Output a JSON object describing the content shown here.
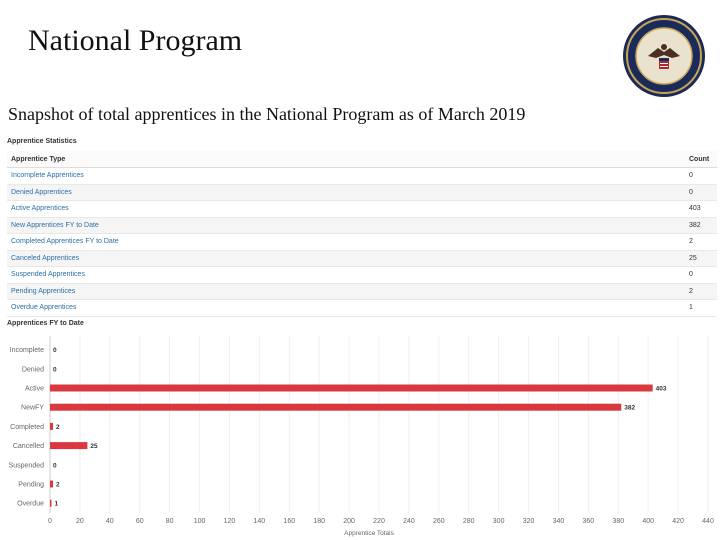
{
  "slide": {
    "title": "National Program",
    "subtitle": "Snapshot of total apprentices in the National Program as of March 2019"
  },
  "stats": {
    "title": "Apprentice Statistics",
    "columns": [
      "Apprentice Type",
      "Count"
    ],
    "rows": [
      {
        "type": "Incomplete Apprentices",
        "count": "0"
      },
      {
        "type": "Denied Apprentices",
        "count": "0"
      },
      {
        "type": "Active Apprentices",
        "count": "403"
      },
      {
        "type": "New Apprentices FY to Date",
        "count": "382"
      },
      {
        "type": "Completed Apprentices FY to Date",
        "count": "2"
      },
      {
        "type": "Canceled Apprentices",
        "count": "25"
      },
      {
        "type": "Suspended Apprentices",
        "count": "0"
      },
      {
        "type": "Pending Apprentices",
        "count": "2"
      },
      {
        "type": "Overdue Apprentices",
        "count": "1"
      }
    ]
  },
  "chart_data": {
    "type": "bar",
    "orientation": "horizontal",
    "title": "Apprentices FY to Date",
    "xlabel": "Apprentice Totals",
    "ylabel": "",
    "categories": [
      "Incomplete",
      "Denied",
      "Active",
      "NewFY",
      "Completed",
      "Cancelled",
      "Suspended",
      "Pending",
      "Overdue"
    ],
    "values": [
      0,
      0,
      403,
      382,
      2,
      25,
      0,
      2,
      1
    ],
    "xlim": [
      0,
      440
    ],
    "xticks": [
      0,
      20,
      40,
      60,
      80,
      100,
      120,
      140,
      160,
      180,
      200,
      220,
      240,
      260,
      280,
      300,
      320,
      340,
      360,
      380,
      400,
      420,
      440
    ],
    "bar_color": "#d9383e",
    "grid": true
  }
}
